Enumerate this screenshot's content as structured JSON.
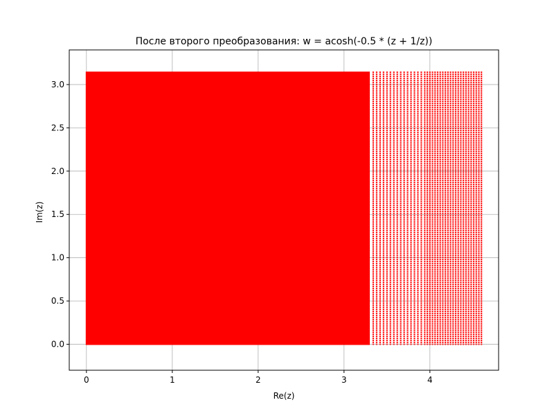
{
  "chart_data": {
    "type": "scatter",
    "title": "После второго преобразования: w = acosh(-0.5 * (z + 1/z))",
    "xlabel": "Re(z)",
    "ylabel": "Im(z)",
    "xlim": [
      -0.2,
      4.8
    ],
    "ylim": [
      -0.3,
      3.4
    ],
    "xticks": [
      0,
      1,
      2,
      3,
      4
    ],
    "xtick_labels": [
      "0",
      "1",
      "2",
      "3",
      "4"
    ],
    "yticks": [
      0.0,
      0.5,
      1.0,
      1.5,
      2.0,
      2.5,
      3.0
    ],
    "ytick_labels": [
      "0.0",
      "0.5",
      "1.0",
      "1.5",
      "2.0",
      "2.5",
      "3.0"
    ],
    "grid": true,
    "series": [
      {
        "color": "#ff0000",
        "marker": "dot",
        "x_range": [
          0.0,
          4.6
        ],
        "y_range": [
          0.0,
          3.1416
        ],
        "solid_fill_until_x": 3.3,
        "sparse_columns_x": [
          3.34,
          3.38,
          3.42,
          3.46,
          3.5,
          3.54,
          3.58,
          3.62,
          3.66,
          3.7,
          3.74,
          3.78,
          3.82,
          3.86,
          3.9,
          3.94,
          3.97,
          4.0,
          4.03,
          4.06,
          4.09,
          4.12,
          4.15,
          4.18,
          4.21,
          4.24,
          4.27,
          4.3,
          4.33,
          4.36,
          4.39,
          4.42,
          4.45,
          4.48,
          4.51,
          4.54,
          4.57,
          4.6
        ]
      }
    ]
  }
}
